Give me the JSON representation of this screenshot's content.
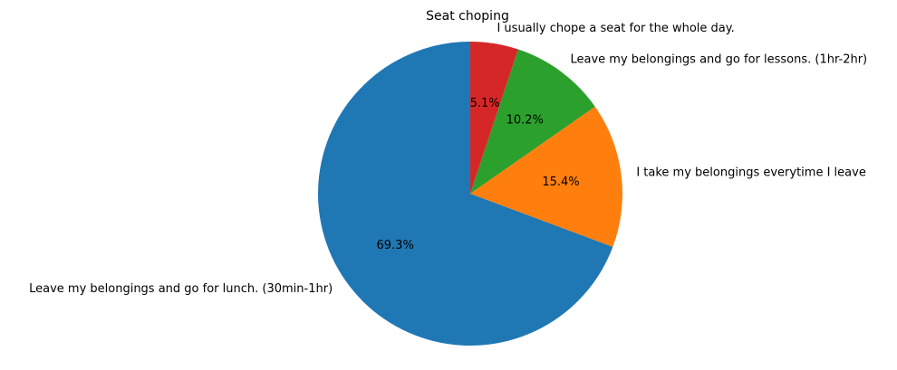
{
  "chart_data": {
    "type": "pie",
    "title": "Seat choping",
    "categories": [
      "Leave my belongings and go for lunch. (30min-1hr)",
      "I take my belongings everytime I leave",
      "Leave my belongings and go for lessons. (1hr-2hr)",
      "I usually chope a seat for the whole day."
    ],
    "values": [
      69.3,
      15.4,
      10.2,
      5.1
    ],
    "percent_labels": [
      "69.3%",
      "15.4%",
      "10.2%",
      "5.1%"
    ],
    "colors": [
      "#1f77b4",
      "#ff7f0e",
      "#2ca02c",
      "#d62728"
    ],
    "start_angle_deg": 90,
    "direction": "counterclockwise",
    "legend": "none"
  }
}
